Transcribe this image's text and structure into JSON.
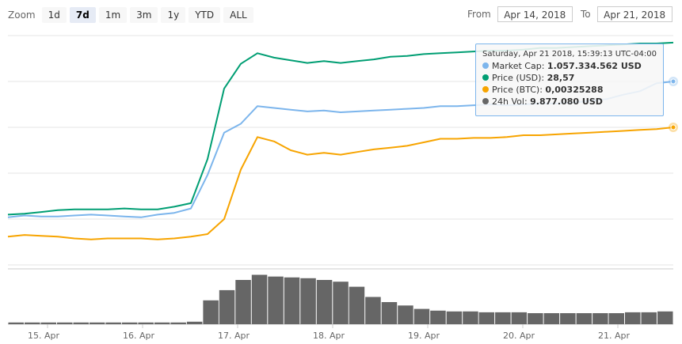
{
  "zoom": {
    "label": "Zoom",
    "buttons": [
      "1d",
      "7d",
      "1m",
      "3m",
      "1y",
      "YTD",
      "ALL"
    ],
    "selected": "7d"
  },
  "range": {
    "from_label": "From",
    "from_value": "Apr 14, 2018",
    "to_label": "To",
    "to_value": "Apr 21, 2018"
  },
  "tooltip": {
    "date": "Saturday, Apr 21 2018, 15:39:13 UTC-04:00",
    "rows": [
      {
        "name": "Market Cap",
        "value": "1.057.334.562 USD",
        "color": "#7cb5ec"
      },
      {
        "name": "Price (USD)",
        "value": "28,57",
        "color": "#009e73"
      },
      {
        "name": "Price (BTC)",
        "value": "0,00325288",
        "color": "#f7a400"
      },
      {
        "name": "24h Vol",
        "value": "9.877.080 USD",
        "color": "#666666"
      }
    ]
  },
  "chart_data": {
    "type": "line",
    "x_range": [
      "2018-04-14T13:00",
      "2018-04-21T15:40"
    ],
    "x_tick_labels": [
      "15. Apr",
      "16. Apr",
      "17. Apr",
      "18. Apr",
      "19. Apr",
      "20. Apr",
      "21. Apr"
    ],
    "grid": true,
    "colors": {
      "market_cap": "#7cb5ec",
      "price_usd": "#009e73",
      "price_btc": "#f7a400",
      "volume": "#666666"
    },
    "series": [
      {
        "name": "Market Cap",
        "color": "#7cb5ec",
        "values": [
          54,
          56,
          55,
          55,
          56,
          57,
          56,
          55,
          54,
          57,
          59,
          64,
          102,
          150,
          160,
          180,
          178,
          176,
          174,
          175,
          173,
          174,
          175,
          176,
          177,
          178,
          180,
          180,
          181,
          182,
          181,
          182,
          183,
          183,
          184,
          186,
          188,
          193,
          197,
          206,
          208
        ]
      },
      {
        "name": "Price (USD)",
        "color": "#009e73",
        "values": [
          57,
          58,
          60,
          62,
          63,
          63,
          63,
          64,
          63,
          63,
          66,
          70,
          120,
          200,
          228,
          240,
          235,
          232,
          229,
          231,
          229,
          231,
          233,
          236,
          237,
          239,
          240,
          241,
          242,
          243,
          243,
          244,
          246,
          246,
          247,
          248,
          249,
          250,
          251,
          251,
          252
        ]
      },
      {
        "name": "Price (BTC)",
        "color": "#f7a400",
        "values": [
          32,
          34,
          33,
          32,
          30,
          29,
          30,
          30,
          30,
          29,
          30,
          32,
          35,
          52,
          108,
          145,
          140,
          130,
          125,
          127,
          125,
          128,
          131,
          133,
          135,
          139,
          143,
          143,
          144,
          144,
          145,
          147,
          147,
          148,
          149,
          150,
          151,
          152,
          153,
          154,
          156
        ]
      },
      {
        "name": "24h Vol",
        "color": "#666666",
        "values": [
          2,
          2,
          2,
          2,
          2,
          2,
          2,
          2,
          2,
          2,
          2,
          3,
          28,
          40,
          52,
          58,
          56,
          55,
          54,
          52,
          50,
          44,
          32,
          26,
          22,
          18,
          16,
          15,
          15,
          14,
          14,
          14,
          13,
          13,
          13,
          13,
          13,
          13,
          14,
          14,
          15
        ]
      }
    ]
  }
}
